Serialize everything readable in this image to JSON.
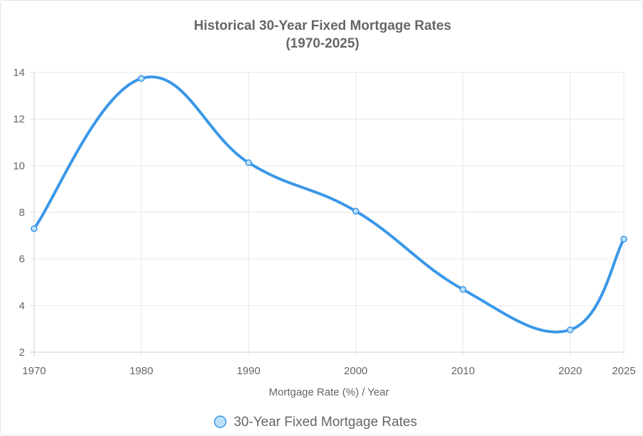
{
  "chart_data": {
    "type": "line",
    "title": [
      "Historical 30-Year Fixed Mortgage Rates",
      "(1970-2025)"
    ],
    "xlabel": "Mortgage Rate (%) / Year",
    "ylabel": "",
    "x": [
      1970,
      1980,
      1990,
      2000,
      2010,
      2020,
      2025
    ],
    "x_tick_labels": [
      "1970",
      "1980",
      "1990",
      "2000",
      "2010",
      "2020",
      "2025"
    ],
    "ylim": [
      2,
      14
    ],
    "y_ticks": [
      2,
      4,
      6,
      8,
      10,
      12,
      14
    ],
    "grid": true,
    "legend_position": "bottom",
    "series": [
      {
        "name": "30-Year Fixed Mortgage Rates",
        "values": [
          7.3,
          13.74,
          10.13,
          8.05,
          4.69,
          2.96,
          6.85
        ],
        "color": "#3a97e8",
        "point_fill": "#bde0f7"
      }
    ]
  }
}
